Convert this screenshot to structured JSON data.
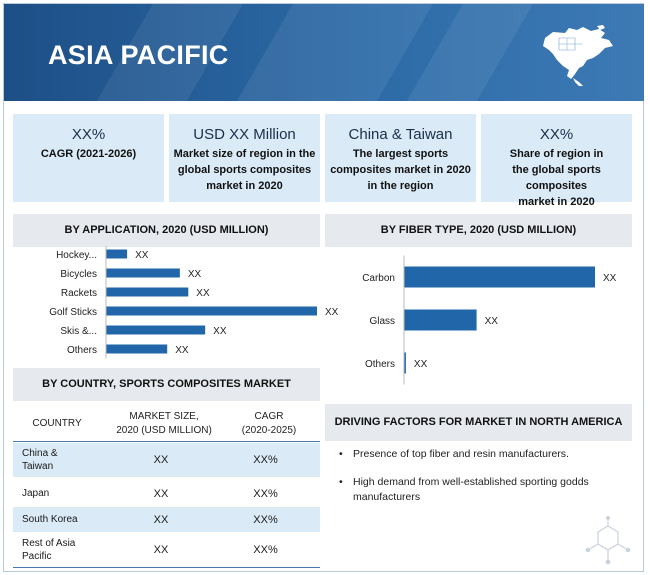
{
  "header": {
    "title": "ASIA PACIFIC",
    "map_icon": "north-america-map-icon"
  },
  "kpis": [
    {
      "value": "XX%",
      "label_lines": [
        "CAGR (2021-2026)"
      ]
    },
    {
      "value": "USD XX Million",
      "label_lines": [
        "Market size of region in the",
        "global sports composites",
        "market in 2020"
      ]
    },
    {
      "value": "China & Taiwan",
      "label_lines": [
        "The largest sports",
        "composites market in 2020",
        "in the region"
      ]
    },
    {
      "value": "XX%",
      "label_lines": [
        "Share of region in",
        "the global sports composites",
        "market in 2020"
      ]
    }
  ],
  "chart_data": [
    {
      "type": "bar",
      "orientation": "horizontal",
      "title": "BY APPLICATION, 2020 (USD MILLION)",
      "categories": [
        "Hockey...",
        "Bicycles",
        "Rackets",
        "Golf Sticks",
        "Skis &...",
        "Others"
      ],
      "values": [
        10,
        35,
        39,
        100,
        47,
        29
      ],
      "data_labels": [
        "XX",
        "XX",
        "XX",
        "XX",
        "XX",
        "XX"
      ],
      "xlabel": "",
      "ylabel": "",
      "xlim": [
        0,
        100
      ],
      "grid": false
    },
    {
      "type": "bar",
      "orientation": "horizontal",
      "title": "BY FIBER TYPE, 2020 (USD MILLION)",
      "categories": [
        "Carbon",
        "Glass",
        "Others"
      ],
      "values": [
        100,
        38,
        1
      ],
      "data_labels": [
        "XX",
        "XX",
        "XX"
      ],
      "xlabel": "",
      "ylabel": "",
      "xlim": [
        0,
        100
      ],
      "grid": false
    }
  ],
  "country_table": {
    "title": "BY COUNTRY, SPORTS COMPOSITES MARKET",
    "headers": [
      [
        "COUNTRY"
      ],
      [
        "MARKET SIZE,",
        "2020 (USD MILLION)"
      ],
      [
        "CAGR",
        "(2020-2025)"
      ]
    ],
    "rows": [
      {
        "country": [
          "China &",
          "Taiwan"
        ],
        "size": "XX",
        "cagr": "XX%"
      },
      {
        "country": [
          "Japan"
        ],
        "size": "XX",
        "cagr": "XX%"
      },
      {
        "country": [
          "South Korea"
        ],
        "size": "XX",
        "cagr": "XX%"
      },
      {
        "country": [
          "Rest of Asia",
          "Pacific"
        ],
        "size": "XX",
        "cagr": "XX%"
      }
    ]
  },
  "drivers": {
    "title": "DRIVING FACTORS FOR MARKET IN NORTH AMERICA",
    "items": [
      [
        "Presence of top fiber and resin manufacturers."
      ],
      [
        "High demand from well-established sporting godds",
        "manufacturers"
      ]
    ]
  },
  "colors": {
    "bar": "#2166a8",
    "banner": "#2c6aa6",
    "kpi_bg": "#daeaf6",
    "section_bg": "#e6e9ee"
  }
}
